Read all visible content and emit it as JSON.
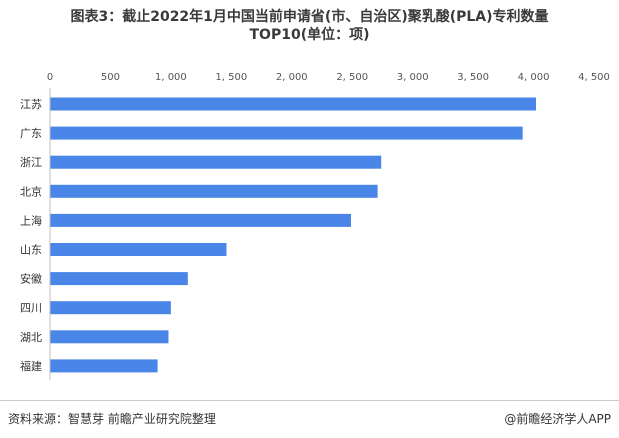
{
  "title_line1": "图表3：截止2022年1月中国当前申请省(市、自治区)聚乳酸(PLA)专利数量",
  "title_line2": "TOP10(单位：项)",
  "source": "资料来源：智慧芽 前瞻产业研究院整理",
  "brand": "@前瞻经济学人APP",
  "colors": {
    "bar": "#4a86e8",
    "text": "#333333"
  },
  "chart_data": {
    "type": "bar",
    "orientation": "horizontal",
    "categories": [
      "江苏",
      "广东",
      "浙江",
      "北京",
      "上海",
      "山东",
      "安徽",
      "四川",
      "湖北",
      "福建"
    ],
    "values": [
      4020,
      3910,
      2740,
      2710,
      2490,
      1460,
      1140,
      1000,
      980,
      890
    ],
    "xlim": [
      0,
      4500
    ],
    "xticks": [
      0,
      500,
      1000,
      1500,
      2000,
      2500,
      3000,
      3500,
      4000,
      4500
    ],
    "xtick_labels": [
      "0",
      "500",
      "1, 000",
      "1, 500",
      "2, 000",
      "2, 500",
      "3, 000",
      "3, 500",
      "4, 000",
      "4, 500"
    ],
    "axis_position": "top",
    "grid": false
  }
}
